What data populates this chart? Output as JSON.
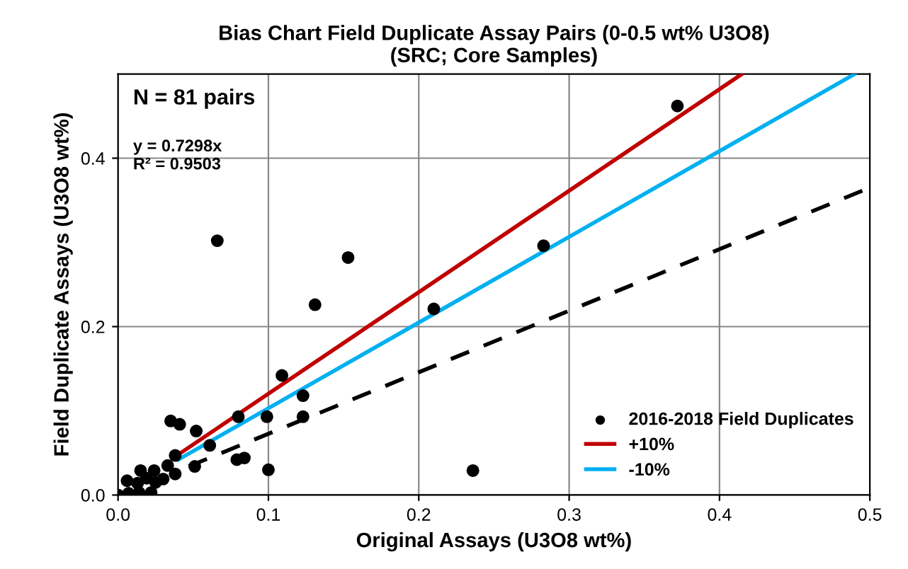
{
  "chart_data": {
    "type": "scatter",
    "title": "Bias Chart Field Duplicate Assay Pairs (0-0.5 wt% U3O8)\n(SRC; Core Samples)",
    "xlabel": "Original Assays (U3O8 wt%)",
    "ylabel": "Field Duplicate Assays (U3O8 wt%)",
    "annotations": [
      "N = 81 pairs",
      "y = 0.7298x\nR² = 0.9503"
    ],
    "series": [
      {
        "name": "2016-2018 Field Duplicates",
        "color": "#000000",
        "marker": "circle",
        "x": [
          0.066,
          0.153,
          0.131,
          0.21,
          0.109,
          0.123,
          0.123,
          0.099,
          0.08,
          0.061,
          0.052,
          0.035,
          0.041,
          0.038,
          0.079,
          0.084,
          0.1,
          0.051,
          0.038,
          0.033,
          0.236,
          0.283,
          0.372,
          0.0,
          0.007,
          0.006,
          0.015,
          0.024,
          0.019,
          0.025,
          0.014,
          0.022,
          0.03,
          0.013
        ],
        "values": [
          0.302,
          0.282,
          0.226,
          0.221,
          0.142,
          0.118,
          0.093,
          0.093,
          0.093,
          0.059,
          0.076,
          0.088,
          0.084,
          0.047,
          0.042,
          0.044,
          0.03,
          0.034,
          0.025,
          0.035,
          0.029,
          0.296,
          0.462,
          0.0,
          0.002,
          0.017,
          0.029,
          0.029,
          0.02,
          0.015,
          0.003,
          0.003,
          0.019,
          0.014
        ]
      },
      {
        "name": "+10%",
        "type": "line",
        "color": "#c00000",
        "line_style": "solid",
        "x": [
          0.04,
          0.415
        ],
        "values": [
          0.048,
          0.5
        ]
      },
      {
        "name": "-10%",
        "type": "line",
        "color": "#00b0f0",
        "line_style": "solid",
        "x": [
          0.04,
          0.49
        ],
        "values": [
          0.042,
          0.5
        ]
      },
      {
        "type": "line",
        "color": "#000000",
        "line_style": "dashed",
        "x": [
          0.047,
          0.5
        ],
        "values": [
          0.034,
          0.365
        ]
      }
    ],
    "xlim": [
      0,
      0.5
    ],
    "ylim": [
      0,
      0.5
    ],
    "xticks": [
      {
        "value": 0,
        "label": "0.0"
      },
      0.1,
      0.2,
      0.3,
      0.4,
      0.5
    ],
    "yticks": [
      {
        "value": 0,
        "label": "0.0"
      },
      0.2,
      0.4
    ],
    "grid": true,
    "legend": "bottom right"
  }
}
